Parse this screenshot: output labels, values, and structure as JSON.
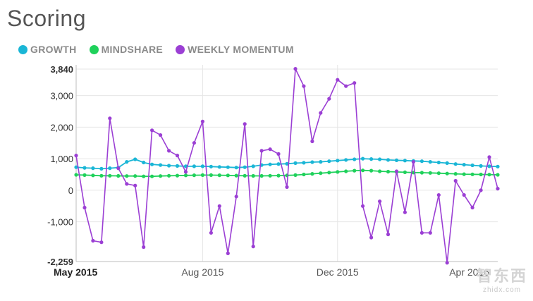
{
  "title": "Scoring",
  "watermark": {
    "logo": "智东西",
    "text": "zhidx.com"
  },
  "chart_data": {
    "type": "line",
    "title": "Scoring",
    "xlabel": "",
    "ylabel": "",
    "ylim": [
      -2259,
      3840
    ],
    "grid": true,
    "legend": "top-left",
    "y_ticks": [
      {
        "value": 3840,
        "label": "3,840"
      },
      {
        "value": 3000,
        "label": "3,000"
      },
      {
        "value": 2000,
        "label": "2,000"
      },
      {
        "value": 1000,
        "label": "1,000"
      },
      {
        "value": 0,
        "label": "0"
      },
      {
        "value": -1000,
        "label": "-1,000"
      },
      {
        "value": -2259,
        "label": "-2,259"
      }
    ],
    "x_ticks": [
      {
        "index": 0,
        "label": "May 2015"
      },
      {
        "index": 15,
        "label": "Aug 2015"
      },
      {
        "index": 31,
        "label": "Dec 2015"
      },
      {
        "index": 49,
        "label": "Apr 2016"
      }
    ],
    "series": [
      {
        "name": "GROWTH",
        "color": "#1ab6d6",
        "values": [
          730,
          710,
          700,
          680,
          700,
          720,
          900,
          980,
          880,
          820,
          800,
          780,
          770,
          760,
          760,
          760,
          750,
          740,
          730,
          720,
          730,
          760,
          800,
          820,
          830,
          840,
          860,
          870,
          890,
          900,
          920,
          940,
          960,
          980,
          1000,
          990,
          980,
          960,
          950,
          940,
          930,
          920,
          900,
          880,
          860,
          830,
          810,
          790,
          770,
          760,
          750
        ]
      },
      {
        "name": "MINDSHARE",
        "color": "#1fd15b",
        "values": [
          490,
          480,
          470,
          460,
          460,
          455,
          450,
          450,
          440,
          440,
          450,
          460,
          465,
          470,
          475,
          480,
          480,
          475,
          470,
          465,
          460,
          455,
          455,
          460,
          465,
          470,
          480,
          500,
          520,
          540,
          560,
          580,
          600,
          620,
          630,
          620,
          600,
          590,
          580,
          570,
          560,
          555,
          550,
          540,
          530,
          520,
          510,
          505,
          500,
          495,
          490
        ]
      },
      {
        "name": "WEEKLY MOMENTUM",
        "color": "#9b3fd4",
        "values": [
          1100,
          -550,
          -1600,
          -1650,
          2280,
          700,
          200,
          150,
          -1800,
          1900,
          1750,
          1250,
          1100,
          580,
          1500,
          2180,
          -1350,
          -500,
          -2000,
          -200,
          2100,
          -1780,
          1250,
          1300,
          1150,
          100,
          3850,
          3300,
          1550,
          2450,
          2900,
          3500,
          3300,
          3400,
          -500,
          -1500,
          -350,
          -1400,
          600,
          -700,
          900,
          -1350,
          -1350,
          -150,
          -2300,
          300,
          -150,
          -550,
          0,
          1050,
          50
        ]
      }
    ]
  }
}
